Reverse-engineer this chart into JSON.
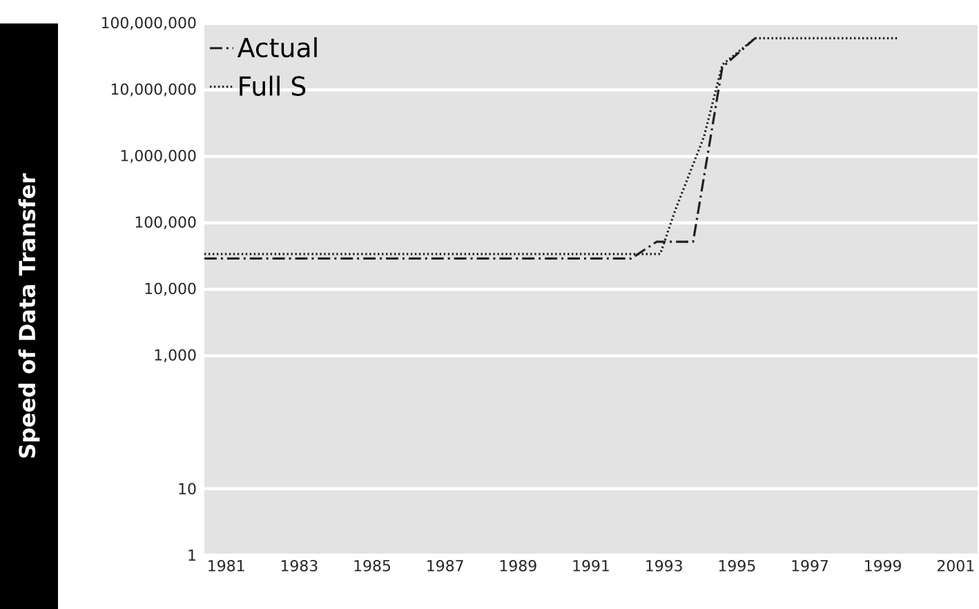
{
  "chart_data": {
    "type": "line",
    "ylabel": "Speed of Data Transfer",
    "xlim": [
      1980.4,
      2001.6
    ],
    "xticks": [
      1981,
      1983,
      1985,
      1987,
      1989,
      1991,
      1993,
      1995,
      1997,
      1999,
      2001
    ],
    "log": "y",
    "ylim": [
      1,
      100000000
    ],
    "yticks": [
      1,
      10,
      {
        "value": 1000,
        "label": "1,000"
      },
      {
        "value": 10000,
        "label": "10,000"
      },
      {
        "value": 100000,
        "label": "100,000"
      },
      {
        "value": 1000000,
        "label": "1,000,000"
      },
      {
        "value": 10000000,
        "label": "10,000,000"
      },
      {
        "value": 100000000,
        "label": "100,000,000"
      }
    ],
    "grid": "y",
    "legend": "top left",
    "marker": "none",
    "series": [
      {
        "name": "Actual",
        "color": "#231f20",
        "line_style": "dashdot",
        "x": [
          1980.4,
          1992.1,
          1992.8,
          1993.8,
          1994.6,
          1995.5
        ],
        "values": [
          29000,
          29000,
          52000,
          52000,
          22000000,
          60000000
        ]
      },
      {
        "name": "Full S",
        "color": "#231f20",
        "line_style": "dotted",
        "x": [
          1980.4,
          1992.9,
          1993.3,
          1994.1,
          1994.6,
          1995.5,
          1999.4
        ],
        "values": [
          34000,
          34000,
          150000,
          2000000,
          24000000,
          60000000,
          60000000
        ]
      }
    ]
  }
}
